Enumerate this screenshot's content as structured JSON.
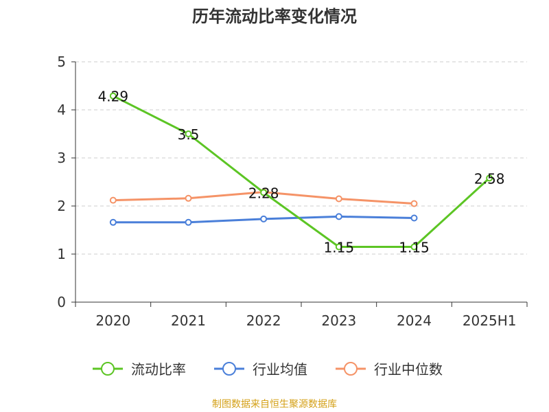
{
  "title": "历年流动比率变化情况",
  "source_note": "制图数据来自恒生聚源数据库",
  "chart_data": {
    "type": "line",
    "title": "历年流动比率变化情况",
    "xlabel": "",
    "ylabel": "",
    "categories": [
      "2020",
      "2021",
      "2022",
      "2023",
      "2024",
      "2025H1"
    ],
    "ylim": [
      0,
      5
    ],
    "yticks": [
      0,
      1,
      2,
      3,
      4,
      5
    ],
    "grid": true,
    "legend_position": "bottom",
    "series": [
      {
        "name": "流动比率",
        "color": "#5cc524",
        "values": [
          4.29,
          3.5,
          2.28,
          1.15,
          1.15,
          2.58
        ],
        "labels": [
          "4.29",
          "3.5",
          "2.28",
          "1.15",
          "1.15",
          "2.58"
        ]
      },
      {
        "name": "行业均值",
        "color": "#4a7fd9",
        "values": [
          1.66,
          1.66,
          1.73,
          1.78,
          1.75,
          null
        ]
      },
      {
        "name": "行业中位数",
        "color": "#f59367",
        "values": [
          2.12,
          2.16,
          2.29,
          2.15,
          2.05,
          null
        ]
      }
    ]
  }
}
